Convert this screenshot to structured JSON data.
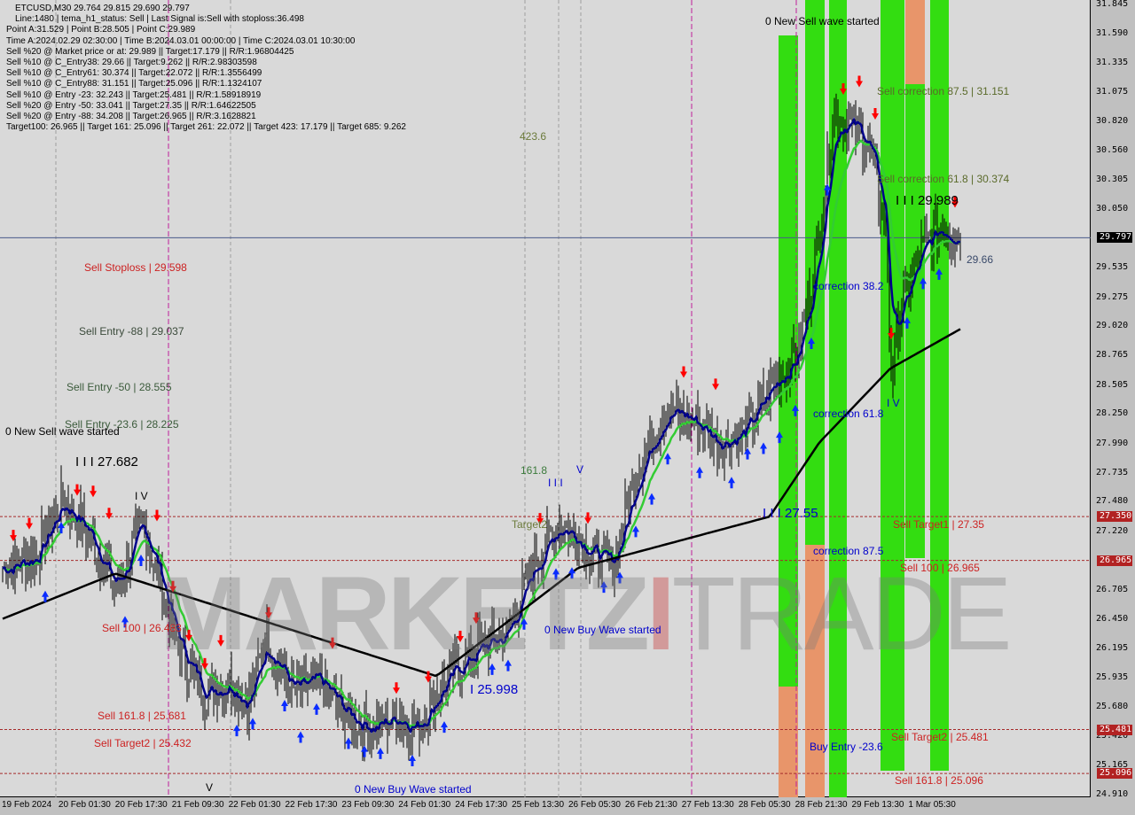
{
  "header": {
    "symbol_line": "ETCUSD,M30  29.764 29.815 29.690 29.797",
    "lines": [
      "Line:1480 | tema_h1_status: Sell | Last Signal is:Sell with stoploss:36.498",
      "Point A:31.529 | Point B:28.505 | Point C:29.989",
      "Time A:2024.02.29 02:30:00 | Time B:2024.03.01 00:00:00 | Time C:2024.03.01 10:30:00",
      "Sell %20 @ Market price or at: 29.989 || Target:17.179 || R/R:1.96804425",
      "Sell %10 @ C_Entry38: 29.66 || Target:9.262 || R/R:2.98303598",
      "Sell %10 @ C_Entry61: 30.374 || Target:22.072 || R/R:1.3556499",
      "Sell %10 @ C_Entry88: 31.151 || Target:25.096 || R/R:1.1324107",
      "Sell %10 @ Entry -23: 32.243 || Target:25.481 || R/R:1.58918919",
      "Sell %20 @ Entry -50: 33.041 || Target:27.35 || R/R:1.64622505",
      "Sell %20 @ Entry -88: 34.208 || Target:26.965 || R/R:3.1628821",
      "Target100: 26.965 || Target 161: 25.096 || Target 261: 22.072 || Target 423: 17.179 || Target 685: 9.262"
    ]
  },
  "watermark": "MARKETZITRADE",
  "colors": {
    "background": "#d9d9d9",
    "bull_arrow": "#0a2cff",
    "bear_arrow": "#ff0000",
    "fast_ma": "#00008b",
    "mid_ma": "#33cc33",
    "slow_ma": "#000000",
    "zone_green": "#33dd11",
    "zone_orange": "#e8956a",
    "level_line": "#a52a2a",
    "badge": "#b22222"
  },
  "chart_data": {
    "type": "candlestick",
    "title": "ETCUSD,M30",
    "ylim": [
      24.91,
      31.845
    ],
    "grid": false,
    "y_ticks": [
      "31.845",
      "31.590",
      "31.335",
      "31.075",
      "30.820",
      "30.560",
      "30.305",
      "30.050",
      "29.535",
      "29.275",
      "29.020",
      "28.765",
      "28.505",
      "28.250",
      "27.990",
      "27.735",
      "27.480",
      "27.220",
      "26.705",
      "26.450",
      "26.195",
      "25.935",
      "25.680",
      "25.420",
      "25.165",
      "24.910"
    ],
    "x_ticks": [
      "19 Feb 2024",
      "20 Feb 01:30",
      "20 Feb 17:30",
      "21 Feb 09:30",
      "22 Feb 01:30",
      "22 Feb 17:30",
      "23 Feb 09:30",
      "24 Feb 01:30",
      "24 Feb 17:30",
      "25 Feb 13:30",
      "26 Feb 05:30",
      "26 Feb 21:30",
      "27 Feb 13:30",
      "28 Feb 05:30",
      "28 Feb 21:30",
      "29 Feb 13:30",
      "1 Mar 05:30"
    ],
    "current_price": "29.797",
    "price_badges": [
      {
        "value": "29.797",
        "kind": "current"
      },
      {
        "value": "27.350",
        "kind": "level"
      },
      {
        "value": "26.965",
        "kind": "level"
      },
      {
        "value": "25.481",
        "kind": "level"
      },
      {
        "value": "25.096",
        "kind": "level"
      }
    ],
    "close_path": [
      [
        "2024-02-19 14:00",
        26.9
      ],
      [
        "2024-02-19 23:00",
        27.0
      ],
      [
        "2024-02-20 06:30",
        27.5
      ],
      [
        "2024-02-20 14:00",
        27.2
      ],
      [
        "2024-02-20 21:30",
        26.7
      ],
      [
        "2024-02-21 05:00",
        27.3
      ],
      [
        "2024-02-21 10:00",
        26.8
      ],
      [
        "2024-02-21 15:00",
        26.2
      ],
      [
        "2024-02-21 22:30",
        25.8
      ],
      [
        "2024-02-22 06:00",
        25.9
      ],
      [
        "2024-02-22 11:00",
        25.7
      ],
      [
        "2024-02-22 16:00",
        26.3
      ],
      [
        "2024-02-22 23:30",
        25.8
      ],
      [
        "2024-02-23 07:00",
        25.9
      ],
      [
        "2024-02-23 14:30",
        25.6
      ],
      [
        "2024-02-23 22:00",
        25.5
      ],
      [
        "2024-02-24 05:30",
        25.6
      ],
      [
        "2024-02-24 10:30",
        25.5
      ],
      [
        "2024-02-24 18:00",
        25.9
      ],
      [
        "2024-02-25 04:00",
        26.2
      ],
      [
        "2024-02-25 11:30",
        26.3
      ],
      [
        "2024-02-25 19:00",
        26.9
      ],
      [
        "2024-02-26 02:30",
        27.3
      ],
      [
        "2024-02-26 10:00",
        27.1
      ],
      [
        "2024-02-26 17:30",
        26.9
      ],
      [
        "2024-02-27 01:00",
        27.8
      ],
      [
        "2024-02-27 08:30",
        28.3
      ],
      [
        "2024-02-27 16:00",
        28.2
      ],
      [
        "2024-02-27 23:30",
        28.0
      ],
      [
        "2024-02-28 07:00",
        28.1
      ],
      [
        "2024-02-28 14:30",
        28.5
      ],
      [
        "2024-02-28 22:00",
        28.8
      ],
      [
        "2024-02-29 03:00",
        29.6
      ],
      [
        "2024-02-29 08:00",
        30.9
      ],
      [
        "2024-02-29 13:00",
        30.8
      ],
      [
        "2024-02-29 18:00",
        30.6
      ],
      [
        "2024-02-29 23:00",
        29.8
      ],
      [
        "2024-03-01 00:00",
        28.6
      ],
      [
        "2024-03-01 04:00",
        29.3
      ],
      [
        "2024-03-01 09:00",
        29.7
      ],
      [
        "2024-03-01 14:00",
        29.9
      ],
      [
        "2024-03-01 20:00",
        29.797
      ]
    ],
    "slow_ma_path": [
      [
        "2024-02-19 13:30",
        26.45
      ],
      [
        "2024-02-20 21:30",
        26.85
      ],
      [
        "2024-02-24 16:00",
        25.95
      ],
      [
        "2024-02-26 08:00",
        26.9
      ],
      [
        "2024-02-28 14:00",
        27.35
      ],
      [
        "2024-02-29 04:00",
        28.0
      ],
      [
        "2024-03-01 00:00",
        28.65
      ],
      [
        "2024-03-01 20:00",
        29.0
      ]
    ],
    "levels": [
      {
        "price": 29.797,
        "style": "solid",
        "color": "#4a5a8a"
      },
      {
        "price": 27.35,
        "style": "dashed",
        "color": "#a52a2a"
      },
      {
        "price": 26.965,
        "style": "dashed",
        "color": "#a52a2a"
      },
      {
        "price": 25.481,
        "style": "dashed",
        "color": "#a52a2a"
      },
      {
        "price": 25.096,
        "style": "dashed",
        "color": "#a52a2a"
      }
    ],
    "annotations": [
      {
        "text": "0 New Sell wave started",
        "color": "#000000"
      },
      {
        "text": "423.6",
        "color": "#6b7a3a"
      },
      {
        "text": "Sell correction 87.5 | 31.151",
        "color": "#5a6a2a"
      },
      {
        "text": "Sell correction 61.8 | 30.374",
        "color": "#5a6a2a"
      },
      {
        "text": "I I I 29.989",
        "color": "#000000"
      },
      {
        "text": "Sell Stoploss | 29.598",
        "color": "#cc2222"
      },
      {
        "text": "Sell Entry -88 | 29.037",
        "color": "#3a4a3a"
      },
      {
        "text": "Sell Entry -50 | 28.555",
        "color": "#3a5a3a"
      },
      {
        "text": "Sell Entry -23.6 | 28.225",
        "color": "#3a5a3a"
      },
      {
        "text": "0 New Sell wave started",
        "color": "#000000"
      },
      {
        "text": "I I I 27.682",
        "color": "#000000"
      },
      {
        "text": "I V",
        "color": "#000000"
      },
      {
        "text": "161.8",
        "color": "#3a7a3a"
      },
      {
        "text": "I I I",
        "color": "#0000cc"
      },
      {
        "text": "V",
        "color": "#0000cc"
      },
      {
        "text": "Target2",
        "color": "#6b7a3a"
      },
      {
        "text": "correction 38.2",
        "color": "#0000cc"
      },
      {
        "text": "correction 61.8",
        "color": "#0000cc"
      },
      {
        "text": "I V",
        "color": "#0000cc"
      },
      {
        "text": "I I I 27.55",
        "color": "#0000cc"
      },
      {
        "text": "correction 87.5",
        "color": "#0000cc"
      },
      {
        "text": "Sell Target1 | 27.35",
        "color": "#cc2222"
      },
      {
        "text": "Sell 100 | 26.965",
        "color": "#cc2222"
      },
      {
        "text": "0 New Buy Wave started",
        "color": "#0000cc"
      },
      {
        "text": "Sell 100 | 26.483",
        "color": "#cc2222"
      },
      {
        "text": "I 25.998",
        "color": "#0000cc"
      },
      {
        "text": "Sell 161.8 | 25.681",
        "color": "#cc2222"
      },
      {
        "text": "Sell Target2 | 25.432",
        "color": "#cc2222"
      },
      {
        "text": "Sell Target2 | 25.481",
        "color": "#cc2222"
      },
      {
        "text": "Buy Entry -23.6",
        "color": "#0000cc"
      },
      {
        "text": "Sell 161.8 | 25.096",
        "color": "#cc2222"
      },
      {
        "text": "0 New Buy Wave started",
        "color": "#0000cc"
      },
      {
        "text": "V",
        "color": "#000000"
      },
      {
        "text": "29.66",
        "color": "#3a4a6a"
      }
    ]
  }
}
